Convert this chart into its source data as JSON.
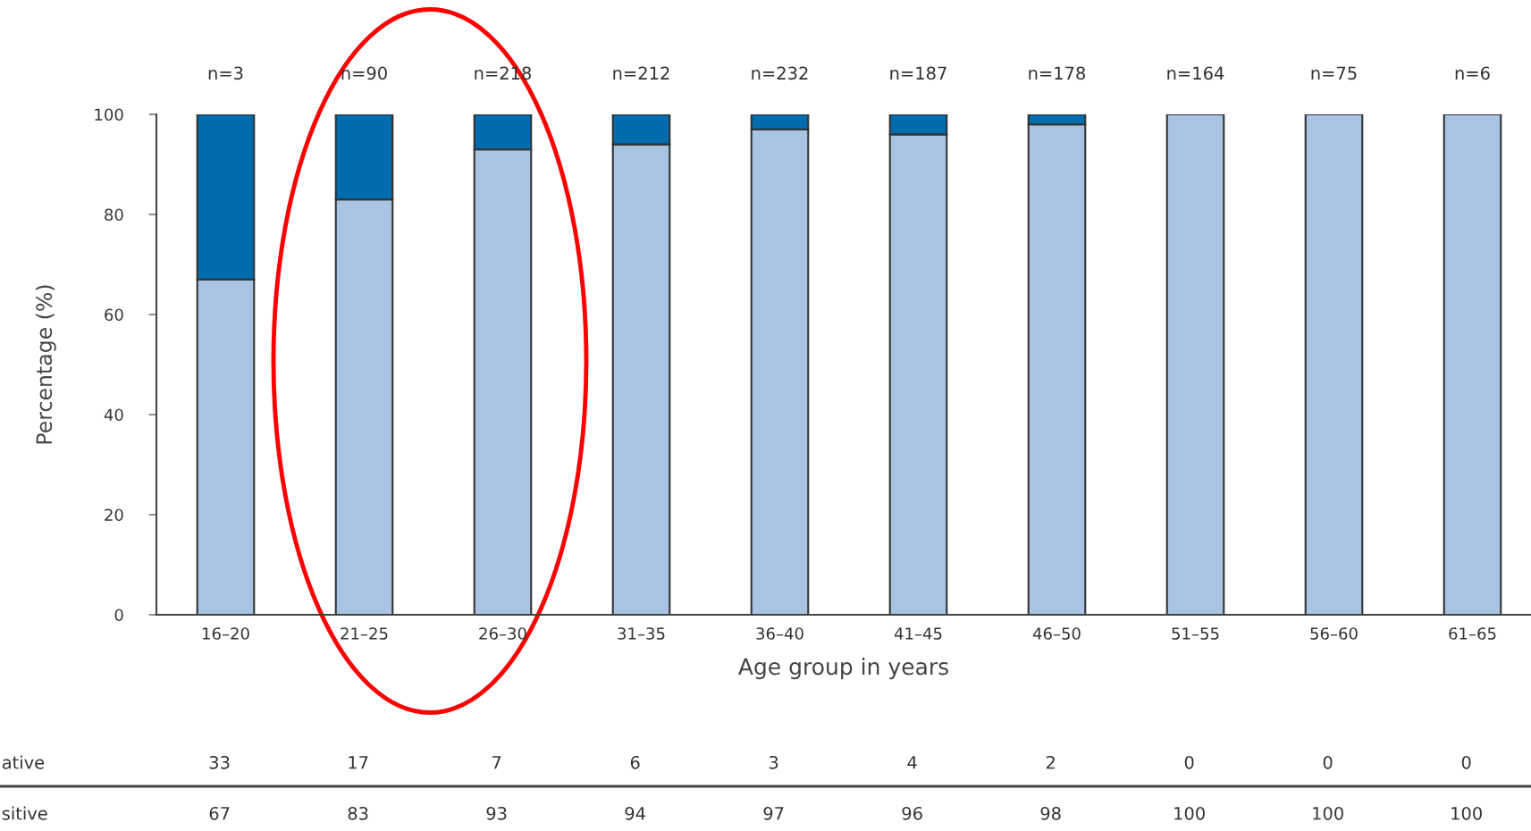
{
  "chart_data": {
    "type": "bar",
    "stacked": true,
    "xlabel": "Age group in years",
    "ylabel": "Percentage (%)",
    "categories": [
      "16–20",
      "21–25",
      "26–30",
      "31–35",
      "36–40",
      "41–45",
      "46–50",
      "51–55",
      "56–60",
      "61–65"
    ],
    "series": [
      {
        "color": "#a8c4e2",
        "values": [
          67,
          83,
          93,
          94,
          97,
          96,
          98,
          100,
          100,
          100
        ]
      },
      {
        "color": "#006bad",
        "values": [
          33,
          17,
          7,
          6,
          3,
          4,
          2,
          0,
          0,
          0
        ]
      }
    ],
    "ylim": [
      0,
      100
    ],
    "yticks": [
      0,
      20,
      40,
      60,
      80,
      100
    ],
    "grid": false,
    "legend": false,
    "data_labels": true,
    "annotations": [
      "ative",
      "sitive",
      {
        "text": "n=3",
        "x": "16–20",
        "y": 100
      },
      {
        "text": "n=90",
        "x": "21–25",
        "y": 100
      },
      {
        "text": "n=218",
        "x": "26–30",
        "y": 100
      },
      {
        "text": "n=212",
        "x": "31–35",
        "y": 100
      },
      {
        "text": "n=232",
        "x": "36–40",
        "y": 100
      },
      {
        "text": "n=187",
        "x": "41–45",
        "y": 100
      },
      {
        "text": "n=178",
        "x": "46–50",
        "y": 100
      },
      {
        "text": "n=164",
        "x": "51–55",
        "y": 100
      },
      {
        "text": "n=75",
        "x": "56–60",
        "y": 100
      },
      {
        "text": "n=6",
        "x": "61–65",
        "y": 100
      }
    ]
  }
}
